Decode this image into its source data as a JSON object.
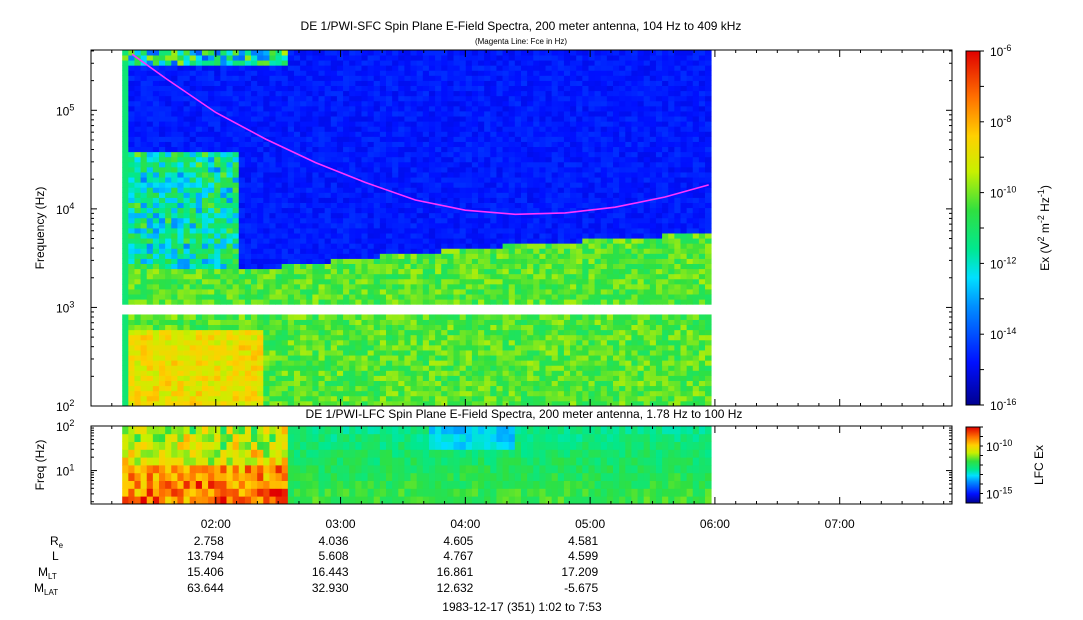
{
  "chart_data": [
    {
      "type": "heatmap",
      "title": "DE 1/PWI-SFC  Spin Plane E-Field Spectra, 200 meter antenna, 104 Hz to 409 kHz",
      "subtitle": "(Magenta Line: Fce in Hz)",
      "ylabel": "Frequency (Hz)",
      "y_scale": "log",
      "ylim": [
        100,
        409000
      ],
      "y_ticks": [
        {
          "m": "10",
          "e": "2",
          "v": 100
        },
        {
          "m": "10",
          "e": "3",
          "v": 1000
        },
        {
          "m": "10",
          "e": "4",
          "v": 10000
        },
        {
          "m": "10",
          "e": "5",
          "v": 100000
        }
      ],
      "data_start_hr": 1.25,
      "data_end_hr": 5.97,
      "gap_freq_hz": [
        880,
        1050
      ],
      "colorbar": {
        "label": "Ex (V2 m-2 Hz-1)",
        "label_parts": [
          "Ex (V",
          "2",
          " m",
          "-2",
          " Hz",
          "-1",
          ")"
        ],
        "scale": "log",
        "range": [
          1e-16,
          1e-06
        ],
        "ticks": [
          {
            "m": "10",
            "e": "-6",
            "v": -6
          },
          {
            "m": "10",
            "e": "-8",
            "v": -8
          },
          {
            "m": "10",
            "e": "-10",
            "v": -10
          },
          {
            "m": "10",
            "e": "-12",
            "v": -12
          },
          {
            "m": "10",
            "e": "-14",
            "v": -14
          },
          {
            "m": "10",
            "e": "-16",
            "v": -16
          }
        ]
      },
      "series": [
        {
          "name": "Fce in Hz",
          "color": "#ff33ff",
          "x_hr": [
            1.33,
            1.6,
            2.0,
            2.4,
            2.8,
            3.2,
            3.6,
            4.0,
            4.4,
            4.8,
            5.2,
            5.6,
            5.95
          ],
          "y_hz": [
            370000,
            210000,
            95000,
            51000,
            29500,
            18500,
            12300,
            9700,
            8800,
            9100,
            10400,
            13200,
            17500
          ]
        }
      ]
    },
    {
      "type": "heatmap",
      "title": "DE 1/PWI-LFC  Spin Plane E-Field Spectra, 200 meter antenna, 1.78 Hz to 100 Hz",
      "ylabel": "Freq (Hz)",
      "y_scale": "log",
      "ylim": [
        1.78,
        100
      ],
      "y_ticks": [
        {
          "m": "10",
          "e": "1",
          "v": 10
        },
        {
          "m": "10",
          "e": "2",
          "v": 100
        }
      ],
      "data_start_hr": 1.25,
      "data_end_hr": 5.97,
      "colorbar": {
        "label": "LFC Ex",
        "scale": "log",
        "range": [
          1e-16,
          1e-08
        ],
        "ticks": [
          {
            "m": "10",
            "e": "-10",
            "v": -10
          },
          {
            "m": "10",
            "e": "-15",
            "v": -15
          }
        ]
      }
    }
  ],
  "time_axis": {
    "xlim_hr": [
      1.0,
      7.9
    ],
    "ticks": [
      {
        "label": "02:00",
        "hr": 2
      },
      {
        "label": "03:00",
        "hr": 3
      },
      {
        "label": "04:00",
        "hr": 4
      },
      {
        "label": "05:00",
        "hr": 5
      },
      {
        "label": "06:00",
        "hr": 6
      },
      {
        "label": "07:00",
        "hr": 7
      }
    ]
  },
  "ephemeris": {
    "rows": [
      {
        "name": "R",
        "sub": "e",
        "values": [
          "2.758",
          "4.036",
          "4.605",
          "4.581"
        ]
      },
      {
        "name": "L",
        "sub": "",
        "values": [
          "13.794",
          "5.608",
          "4.767",
          "4.599"
        ]
      },
      {
        "name": "M",
        "sub": "LT",
        "values": [
          "15.406",
          "16.443",
          "16.861",
          "17.209"
        ]
      },
      {
        "name": "M",
        "sub": "LAT",
        "values": [
          "63.644",
          "32.930",
          "12.632",
          "-5.675"
        ]
      }
    ],
    "footer": "1983-12-17 (351) 1:02 to 7:53"
  }
}
